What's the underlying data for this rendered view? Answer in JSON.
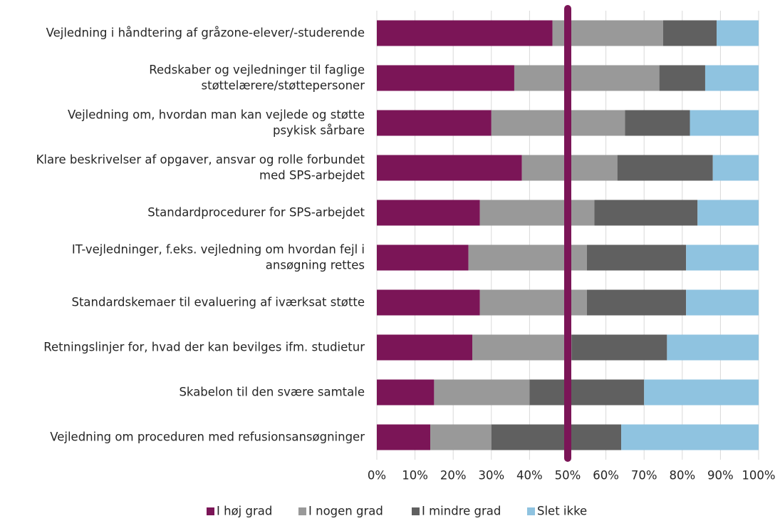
{
  "chart_data": {
    "type": "stacked-bar-horizontal",
    "categories": [
      "Vejledning i håndtering af gråzone-elever/-studerende",
      "Redskaber og vejledninger til faglige\nstøttelærere/støttepersoner",
      "Vejledning om, hvordan man kan vejlede og støtte\npsykisk sårbare",
      "Klare beskrivelser af opgaver, ansvar og rolle forbundet\nmed SPS-arbejdet",
      "Standardprocedurer for SPS-arbejdet",
      "IT-vejledninger, f.eks. vejledning om hvordan fejl i\nansøgning rettes",
      "Standardskemaer til evaluering af iværksat støtte",
      "Retningslinjer for, hvad der kan bevilges ifm. studietur",
      "Skabelon til den svære samtale",
      "Vejledning om proceduren med refusionsansøgninger"
    ],
    "series": [
      {
        "name": "I høj grad",
        "color": "#7b1557",
        "values": [
          46,
          36,
          30,
          38,
          27,
          24,
          27,
          25,
          15,
          14
        ]
      },
      {
        "name": "I nogen grad",
        "color": "#999999",
        "values": [
          29,
          38,
          35,
          25,
          30,
          31,
          28,
          26,
          25,
          16
        ]
      },
      {
        "name": "I mindre grad",
        "color": "#606060",
        "values": [
          14,
          12,
          17,
          25,
          27,
          26,
          26,
          25,
          30,
          34
        ]
      },
      {
        "name": "Slet ikke",
        "color": "#8fc3e0",
        "values": [
          11,
          14,
          18,
          12,
          16,
          19,
          19,
          24,
          30,
          36
        ]
      }
    ],
    "xlim": [
      0,
      100
    ],
    "xticks": [
      {
        "value": 0,
        "label": "0%"
      },
      {
        "value": 10,
        "label": "10%"
      },
      {
        "value": 20,
        "label": "20%"
      },
      {
        "value": 30,
        "label": "30%"
      },
      {
        "value": 40,
        "label": "40%"
      },
      {
        "value": 50,
        "label": "50%"
      },
      {
        "value": 60,
        "label": "60%"
      },
      {
        "value": 70,
        "label": "70%"
      },
      {
        "value": 80,
        "label": "80%"
      },
      {
        "value": 90,
        "label": "90%"
      },
      {
        "value": 100,
        "label": "100%"
      }
    ],
    "grid": true,
    "legend": "bottom",
    "reference_line": {
      "value": 50,
      "color": "#7b1557"
    }
  }
}
